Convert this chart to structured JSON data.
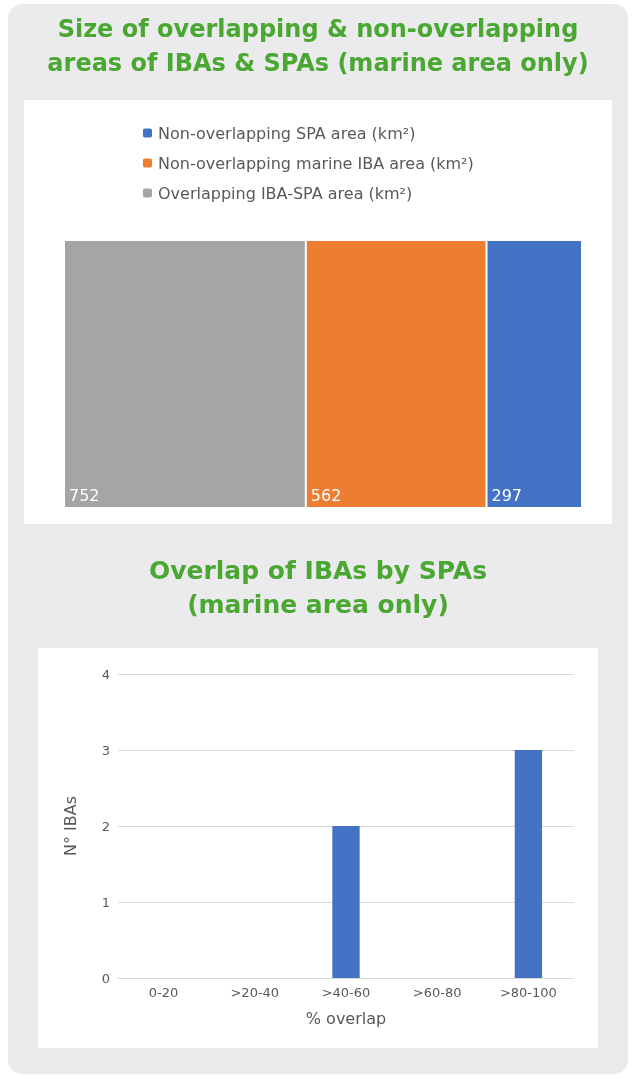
{
  "chart_data": [
    {
      "type": "bar",
      "title": "Size of overlapping & non-overlapping areas of IBAs & SPAs (marine area only)",
      "orientation": "horizontal",
      "stacked": true,
      "data_labels": true,
      "legend": "top",
      "categories": [
        null
      ],
      "series": [
        {
          "name": "Overlapping IBA-SPA area (km²)",
          "color": "#a5a5a5",
          "values": [
            752
          ]
        },
        {
          "name": "Non-overlapping marine IBA area (km²)",
          "color": "#ed7d31",
          "values": [
            562
          ]
        },
        {
          "name": "Non-overlapping SPA area (km²)",
          "color": "#4472c4",
          "values": [
            297
          ]
        }
      ]
    },
    {
      "type": "bar",
      "title": "Overlap of IBAs by SPAs (marine area only)",
      "xlabel": "% overlap",
      "ylabel": "N° IBAs",
      "grid": "y",
      "categories": [
        "0-20",
        ">20-40",
        ">40-60",
        ">60-80",
        ">80-100"
      ],
      "values": [
        0,
        0,
        2,
        0,
        3
      ],
      "color": "#4472c4",
      "ylim": [
        0,
        4
      ],
      "yticks": [
        0,
        1,
        2,
        3,
        4
      ]
    }
  ]
}
